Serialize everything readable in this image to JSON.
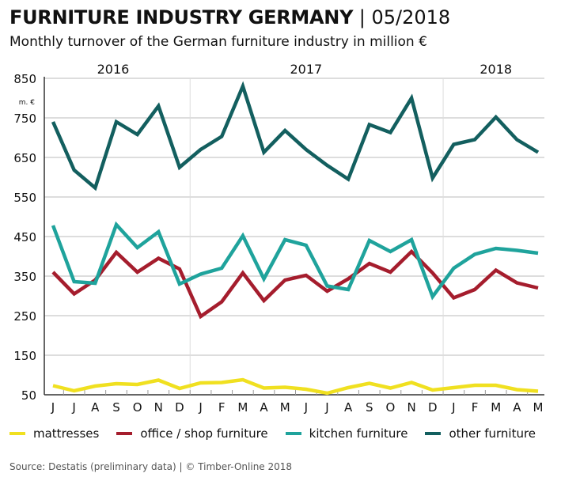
{
  "title_main": "FURNITURE INDUSTRY GERMANY",
  "title_sep": " | ",
  "title_date": "05/2018",
  "subtitle": "Monthly turnover of the German furniture industry in million €",
  "source": "Source: Destatis (preliminary data) | © Timber-Online 2018",
  "chart_data": {
    "type": "line",
    "title": "Monthly turnover of the German furniture industry in million €",
    "ylabel": "m. €",
    "ylim": [
      50,
      850
    ],
    "yticks": [
      "850",
      "750",
      "650",
      "550",
      "450",
      "350",
      "250",
      "150",
      "50"
    ],
    "years": [
      "2016",
      "2017",
      "2018"
    ],
    "categories": [
      "J",
      "J",
      "A",
      "S",
      "O",
      "N",
      "D",
      "J",
      "F",
      "M",
      "A",
      "M",
      "J",
      "J",
      "A",
      "S",
      "O",
      "N",
      "D",
      "J",
      "F",
      "M",
      "A",
      "M"
    ],
    "grid": true,
    "legend": "bottom",
    "series": [
      {
        "name": "mattresses",
        "color": "#f0e020",
        "values": [
          73,
          60,
          72,
          78,
          76,
          87,
          66,
          80,
          81,
          88,
          67,
          69,
          64,
          54,
          68,
          79,
          67,
          81,
          62,
          68,
          74,
          74,
          63,
          59
        ]
      },
      {
        "name": "office / shop furniture",
        "color": "#a51d2d",
        "values": [
          360,
          305,
          340,
          410,
          360,
          395,
          368,
          248,
          285,
          358,
          288,
          340,
          352,
          312,
          343,
          382,
          360,
          412,
          358,
          295,
          316,
          365,
          333,
          320
        ]
      },
      {
        "name": "kitchen furniture",
        "color": "#1fa39c",
        "values": [
          478,
          336,
          332,
          480,
          422,
          462,
          330,
          355,
          370,
          452,
          343,
          442,
          428,
          325,
          316,
          440,
          412,
          442,
          298,
          370,
          405,
          420,
          415,
          408
        ]
      },
      {
        "name": "other furniture",
        "color": "#135f5f",
        "values": [
          740,
          618,
          573,
          740,
          708,
          780,
          625,
          670,
          703,
          830,
          663,
          718,
          670,
          630,
          595,
          733,
          713,
          800,
          598,
          683,
          695,
          752,
          695,
          663
        ]
      }
    ]
  }
}
